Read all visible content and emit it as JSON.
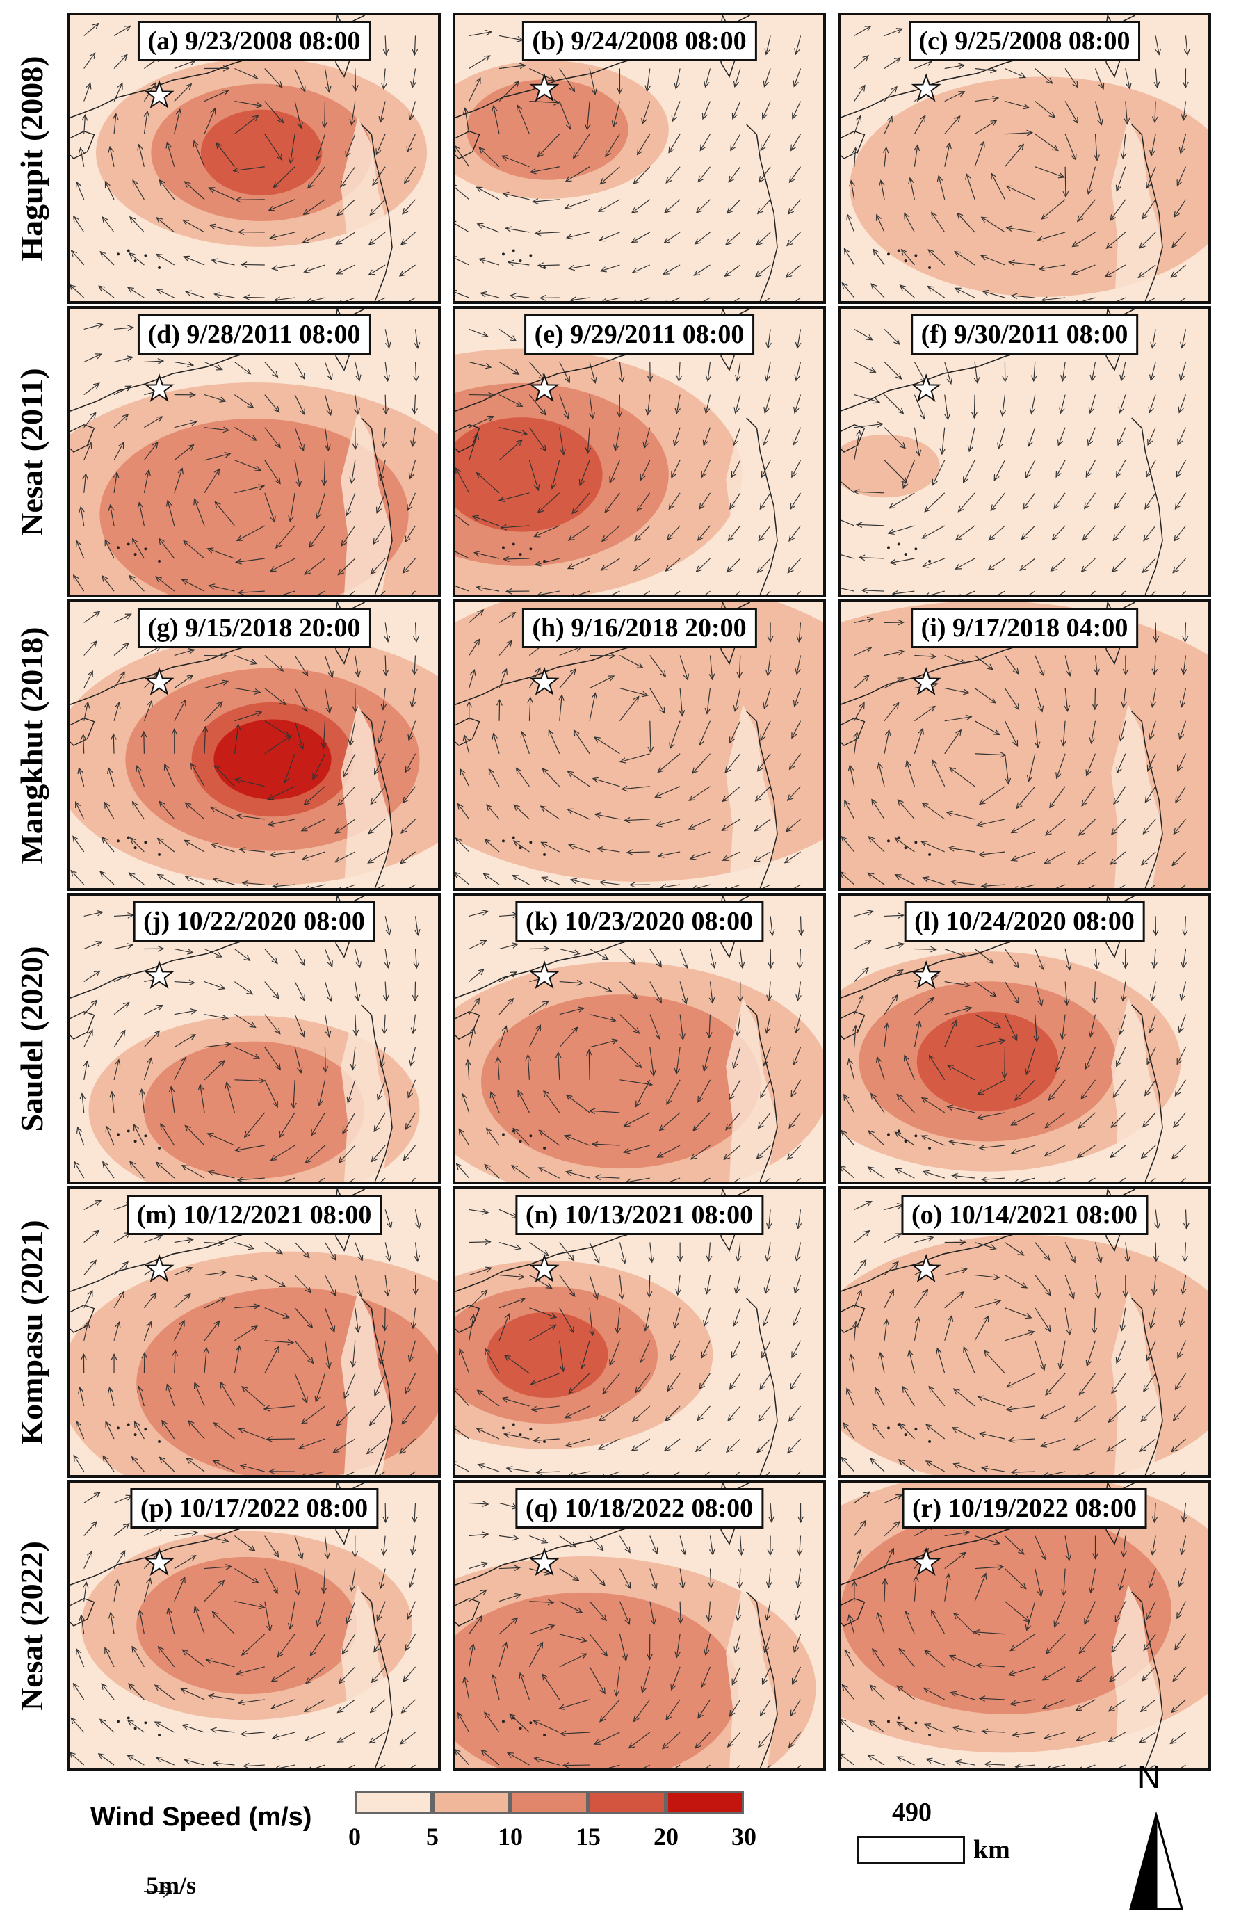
{
  "rows": [
    {
      "label": "Hagupit (2008)",
      "panels": [
        "(a) 9/23/2008 08:00",
        "(b) 9/24/2008 08:00",
        "(c) 9/25/2008 08:00"
      ]
    },
    {
      "label": "Nesat (2011)",
      "panels": [
        "(d) 9/28/2011 08:00",
        "(e) 9/29/2011 08:00",
        "(f) 9/30/2011 08:00"
      ]
    },
    {
      "label": "Mangkhut (2018)",
      "panels": [
        "(g) 9/15/2018 20:00",
        "(h) 9/16/2018 20:00",
        "(i) 9/17/2018 04:00"
      ]
    },
    {
      "label": "Saudel (2020)",
      "panels": [
        "(j) 10/22/2020 08:00",
        "(k) 10/23/2020 08:00",
        "(l) 10/24/2020 08:00"
      ]
    },
    {
      "label": "Kompasu (2021)",
      "panels": [
        "(m) 10/12/2021 08:00",
        "(n) 10/13/2021 08:00",
        "(o) 10/14/2021 08:00"
      ]
    },
    {
      "label": "Nesat (2022)",
      "panels": [
        "(p) 10/17/2022 08:00",
        "(q) 10/18/2022 08:00",
        "(r) 10/19/2022 08:00"
      ]
    }
  ],
  "legend": {
    "title": "Wind Speed (m/s)",
    "classes": [
      {
        "range": [
          0,
          5
        ],
        "color": "#fbe6d6"
      },
      {
        "range": [
          5,
          10
        ],
        "color": "#f0b79b"
      },
      {
        "range": [
          10,
          15
        ],
        "color": "#e2866b"
      },
      {
        "range": [
          15,
          20
        ],
        "color": "#d4553f"
      },
      {
        "range": [
          20,
          30
        ],
        "color": "#c3140e"
      }
    ],
    "ticks": [
      "0",
      "5",
      "10",
      "15",
      "20",
      "30"
    ],
    "arrow_label": "5m/s"
  },
  "scale": {
    "value": "490",
    "unit": "km"
  },
  "north_label": "N",
  "marker": "star"
}
